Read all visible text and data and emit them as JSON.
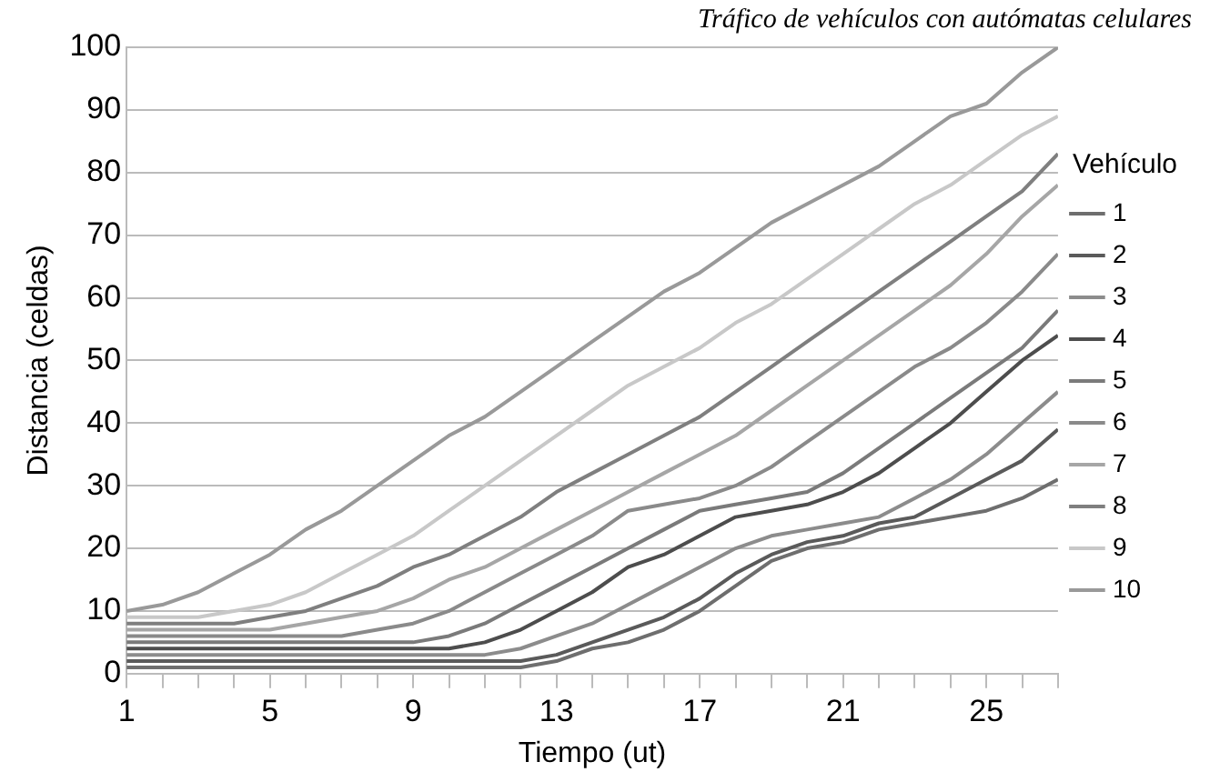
{
  "chart_data": {
    "type": "line",
    "title": "Tráfico de vehículos con autómatas celulares",
    "xlabel": "Tiempo (ut)",
    "ylabel": "Distancia (celdas)",
    "legend_title": "Vehículo",
    "legend": "right",
    "grid": "y",
    "marker": "none",
    "line_style": "solid",
    "x": [
      1,
      2,
      3,
      4,
      5,
      6,
      7,
      8,
      9,
      10,
      11,
      12,
      13,
      14,
      15,
      16,
      17,
      18,
      19,
      20,
      21,
      22,
      23,
      24,
      25,
      26,
      27
    ],
    "xlim": [
      1,
      27
    ],
    "xticks": [
      1,
      {
        "value": 2,
        "label": null
      },
      {
        "value": 3,
        "label": null
      },
      {
        "value": 4,
        "label": null
      },
      5,
      {
        "value": 6,
        "label": null
      },
      {
        "value": 7,
        "label": null
      },
      {
        "value": 8,
        "label": null
      },
      9,
      {
        "value": 10,
        "label": null
      },
      {
        "value": 11,
        "label": null
      },
      {
        "value": 12,
        "label": null
      },
      13,
      {
        "value": 14,
        "label": null
      },
      {
        "value": 15,
        "label": null
      },
      {
        "value": 16,
        "label": null
      },
      17,
      {
        "value": 18,
        "label": null
      },
      {
        "value": 19,
        "label": null
      },
      {
        "value": 20,
        "label": null
      },
      21,
      {
        "value": 22,
        "label": null
      },
      {
        "value": 23,
        "label": null
      },
      {
        "value": 24,
        "label": null
      },
      25,
      {
        "value": 26,
        "label": null
      },
      {
        "value": 27,
        "label": null
      }
    ],
    "ylim": [
      0,
      100
    ],
    "yticks": [
      0,
      10,
      20,
      30,
      40,
      50,
      60,
      70,
      80,
      90,
      100
    ],
    "series": [
      {
        "name": "1",
        "color": "#6e6e6e",
        "values": [
          1,
          1,
          1,
          1,
          1,
          1,
          1,
          1,
          1,
          1,
          1,
          1,
          2,
          4,
          5,
          7,
          10,
          14,
          18,
          20,
          21,
          23,
          24,
          25,
          26,
          28,
          31
        ]
      },
      {
        "name": "2",
        "color": "#5a5a5a",
        "values": [
          2,
          2,
          2,
          2,
          2,
          2,
          2,
          2,
          2,
          2,
          2,
          2,
          3,
          5,
          7,
          9,
          12,
          16,
          19,
          21,
          22,
          24,
          25,
          28,
          31,
          34,
          39
        ]
      },
      {
        "name": "3",
        "color": "#8c8c8c",
        "values": [
          3,
          3,
          3,
          3,
          3,
          3,
          3,
          3,
          3,
          3,
          3,
          4,
          6,
          8,
          11,
          14,
          17,
          20,
          22,
          23,
          24,
          25,
          28,
          31,
          35,
          40,
          45
        ]
      },
      {
        "name": "4",
        "color": "#4d4d4d",
        "values": [
          4,
          4,
          4,
          4,
          4,
          4,
          4,
          4,
          4,
          4,
          5,
          7,
          10,
          13,
          17,
          19,
          22,
          25,
          26,
          27,
          29,
          32,
          36,
          40,
          45,
          50,
          54
        ]
      },
      {
        "name": "5",
        "color": "#7a7a7a",
        "values": [
          5,
          5,
          5,
          5,
          5,
          5,
          5,
          5,
          5,
          6,
          8,
          11,
          14,
          17,
          20,
          23,
          26,
          27,
          28,
          29,
          32,
          36,
          40,
          44,
          48,
          52,
          58
        ]
      },
      {
        "name": "6",
        "color": "#8a8a8a",
        "values": [
          6,
          6,
          6,
          6,
          6,
          6,
          6,
          7,
          8,
          10,
          13,
          16,
          19,
          22,
          26,
          27,
          28,
          30,
          33,
          37,
          41,
          45,
          49,
          52,
          56,
          61,
          67
        ]
      },
      {
        "name": "7",
        "color": "#a6a6a6",
        "values": [
          7,
          7,
          7,
          7,
          7,
          8,
          9,
          10,
          12,
          15,
          17,
          20,
          23,
          26,
          29,
          32,
          35,
          38,
          42,
          46,
          50,
          54,
          58,
          62,
          67,
          73,
          78
        ]
      },
      {
        "name": "8",
        "color": "#7f7f7f",
        "values": [
          8,
          8,
          8,
          8,
          9,
          10,
          12,
          14,
          17,
          19,
          22,
          25,
          29,
          32,
          35,
          38,
          41,
          45,
          49,
          53,
          57,
          61,
          65,
          69,
          73,
          77,
          83
        ]
      },
      {
        "name": "9",
        "color": "#c8c8c8",
        "values": [
          9,
          9,
          9,
          10,
          11,
          13,
          16,
          19,
          22,
          26,
          30,
          34,
          38,
          42,
          46,
          49,
          52,
          56,
          59,
          63,
          67,
          71,
          75,
          78,
          82,
          86,
          89
        ]
      },
      {
        "name": "10",
        "color": "#999999",
        "values": [
          10,
          11,
          13,
          16,
          19,
          23,
          26,
          30,
          34,
          38,
          41,
          45,
          49,
          53,
          57,
          61,
          64,
          68,
          72,
          75,
          78,
          81,
          85,
          89,
          91,
          96,
          100
        ]
      }
    ]
  }
}
